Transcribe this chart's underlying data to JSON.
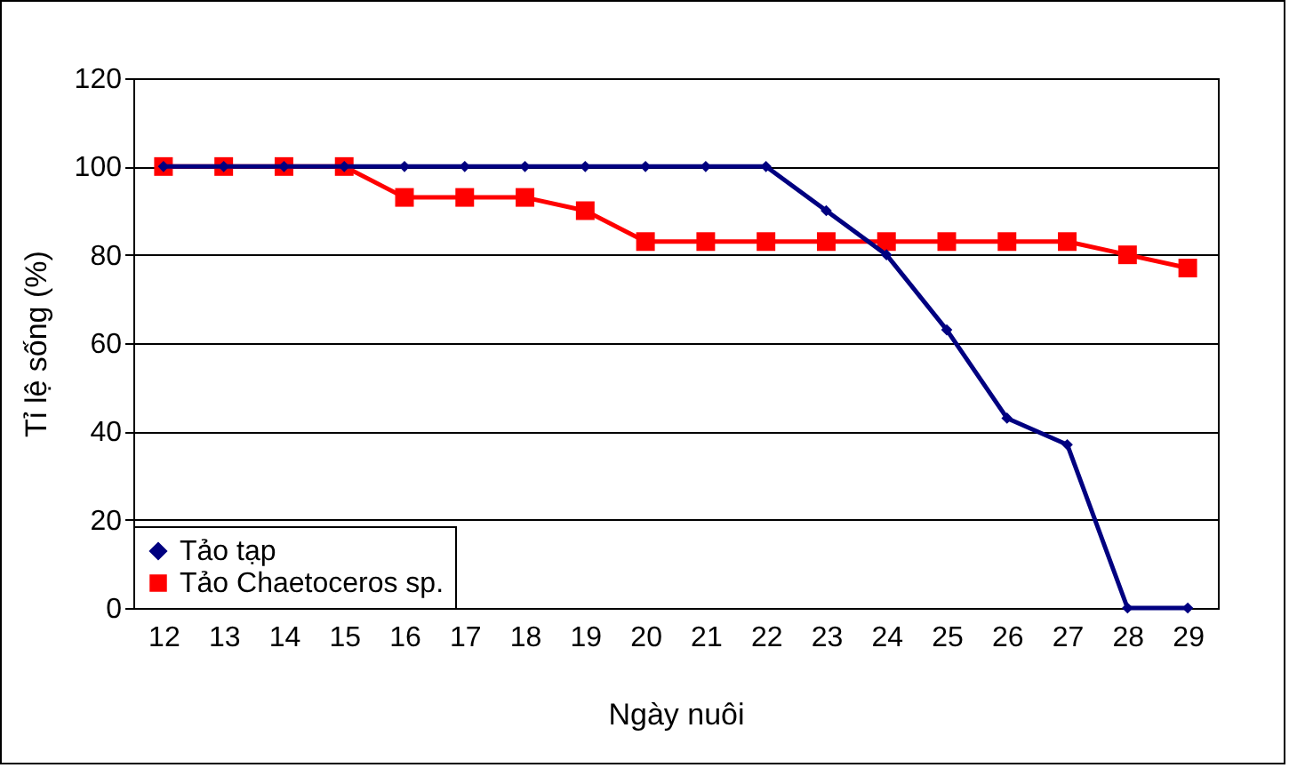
{
  "chart_data": {
    "type": "line",
    "xlabel": "Ngày nuôi",
    "ylabel": "Tỉ lệ sống (%)",
    "categories": [
      "12",
      "13",
      "14",
      "15",
      "16",
      "17",
      "18",
      "19",
      "20",
      "21",
      "22",
      "23",
      "24",
      "25",
      "26",
      "27",
      "28",
      "29"
    ],
    "series": [
      {
        "name": "Tảo tạp",
        "color": "#000080",
        "marker": "diamond",
        "values": [
          100,
          100,
          100,
          100,
          100,
          100,
          100,
          100,
          100,
          100,
          100,
          90,
          80,
          63,
          43,
          37,
          0,
          0
        ]
      },
      {
        "name": "Tảo Chaetoceros sp.",
        "color": "#ff0000",
        "marker": "square",
        "values": [
          100,
          100,
          100,
          100,
          93,
          93,
          93,
          90,
          83,
          83,
          83,
          83,
          83,
          83,
          83,
          83,
          80,
          77
        ]
      }
    ],
    "ylim": [
      0,
      120
    ],
    "yticks": [
      0,
      20,
      40,
      60,
      80,
      100,
      120
    ],
    "grid": "y",
    "legend": "bottom left",
    "line_style": "solid"
  }
}
